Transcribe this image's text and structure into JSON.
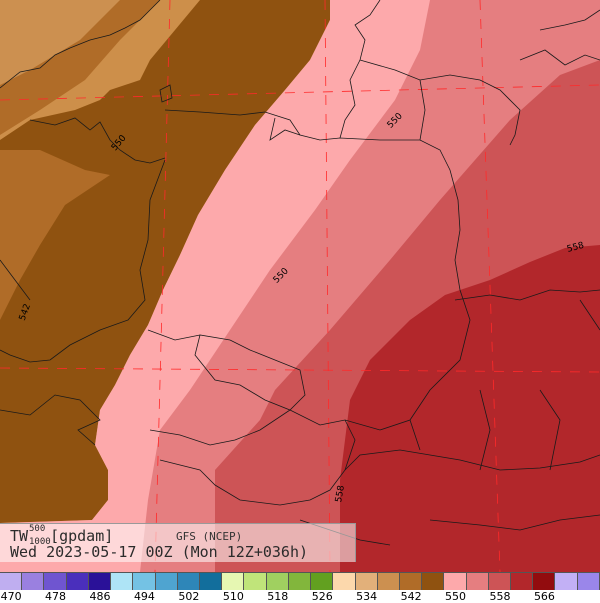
{
  "title": {
    "variable": "TW",
    "level_top": "500",
    "level_bottom": "1000",
    "unit": "[gpdam]",
    "model": "GFS (NCEP)",
    "valid": "Wed 2023-05-17 00Z (Mon 12Z+036h)"
  },
  "contour_labels": [
    "542",
    "550",
    "550",
    "550",
    "558",
    "558"
  ],
  "legend": {
    "values": [
      "470",
      "478",
      "486",
      "494",
      "502",
      "510",
      "518",
      "526",
      "534",
      "542",
      "550",
      "558",
      "566"
    ],
    "colors": [
      "#bfaef0",
      "#9a80e0",
      "#6f55d0",
      "#4a2fbc",
      "#2a1198",
      "#aee4f6",
      "#74c2e4",
      "#4fa4d0",
      "#2e86b8",
      "#126e9c",
      "#e6f7b2",
      "#c0e47a",
      "#a0d060",
      "#82b63c",
      "#62a020",
      "#fcd8ac",
      "#e2b07a",
      "#cc9050",
      "#b06c28",
      "#8f5210",
      "#fda9ab",
      "#e57e80",
      "#cd5456",
      "#b2272b",
      "#920c0e",
      "#c2b0f5",
      "#9a86ea"
    ]
  }
}
